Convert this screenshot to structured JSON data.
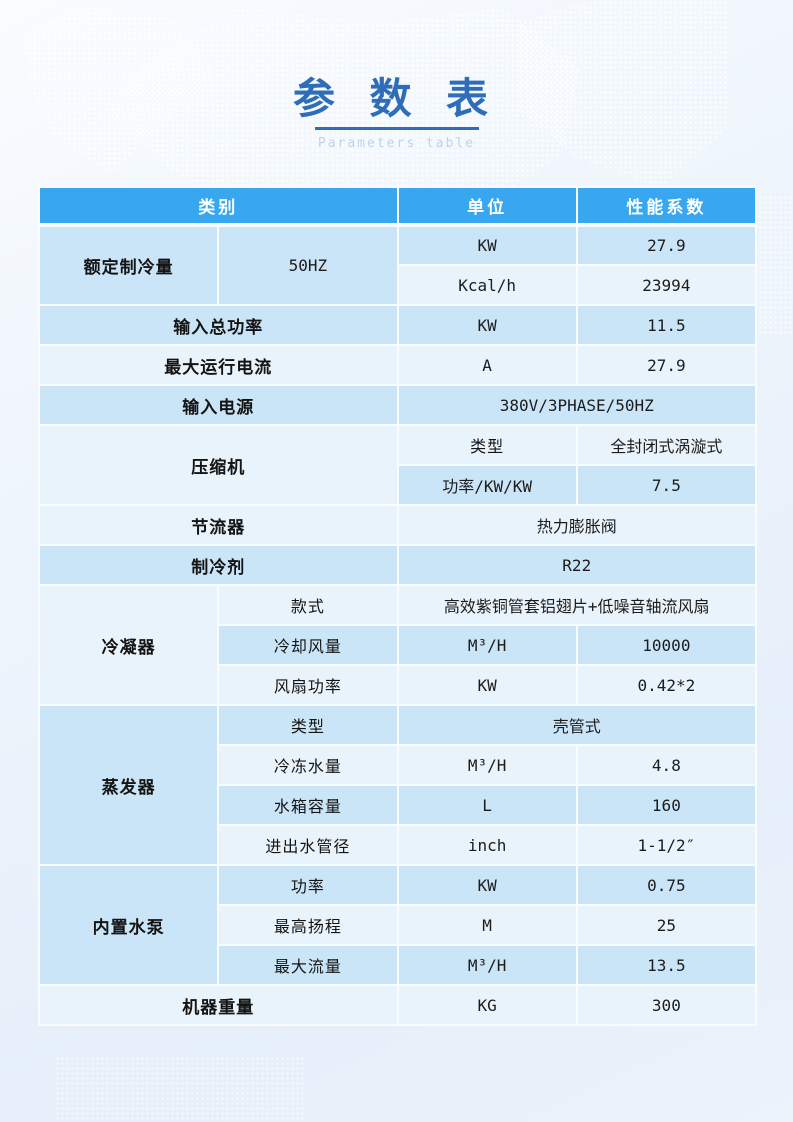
{
  "page": {
    "title": "参 数 表",
    "subtitle": "Parameters table"
  },
  "colors": {
    "header_bg": "#38a7f0",
    "row_dark": "#cbe5f8",
    "row_light": "#e9f3fb",
    "title_blue": "#2f6db8",
    "subtitle_blue": "#bed3e9"
  },
  "table": {
    "header": {
      "category": "类别",
      "unit": "单位",
      "value": "性能系数"
    },
    "rows": [
      {
        "shade": "dark",
        "cells": [
          {
            "kind": "category",
            "text": "额定制冷量",
            "rowspan": 2
          },
          {
            "kind": "unit",
            "text": "50HZ",
            "rowspan": 2
          },
          {
            "kind": "unit",
            "text": "KW"
          },
          {
            "kind": "value",
            "text": "27.9"
          }
        ]
      },
      {
        "shade": "light",
        "cells": [
          {
            "kind": "unit",
            "text": "Kcal/h"
          },
          {
            "kind": "value",
            "text": "23994"
          }
        ]
      },
      {
        "shade": "dark",
        "cells": [
          {
            "kind": "category",
            "text": "输入总功率",
            "colspan": 2
          },
          {
            "kind": "unit",
            "text": "KW"
          },
          {
            "kind": "value",
            "text": "11.5"
          }
        ]
      },
      {
        "shade": "light",
        "cells": [
          {
            "kind": "category",
            "text": "最大运行电流",
            "colspan": 2
          },
          {
            "kind": "unit",
            "text": "A"
          },
          {
            "kind": "value",
            "text": "27.9"
          }
        ]
      },
      {
        "shade": "dark",
        "cells": [
          {
            "kind": "category",
            "text": "输入电源",
            "colspan": 2
          },
          {
            "kind": "value",
            "text": "380V/3PHASE/50HZ",
            "colspan": 2
          }
        ]
      },
      {
        "shade": "light",
        "cells": [
          {
            "kind": "category",
            "text": "压缩机",
            "colspan": 2,
            "rowspan": 2
          },
          {
            "kind": "sublabel",
            "text": "类型"
          },
          {
            "kind": "value",
            "text": "全封闭式涡漩式"
          }
        ]
      },
      {
        "shade": "dark",
        "cells": [
          {
            "kind": "unit",
            "text": "功率/KW/KW"
          },
          {
            "kind": "value",
            "text": "7.5"
          }
        ]
      },
      {
        "shade": "light",
        "cells": [
          {
            "kind": "category",
            "text": "节流器",
            "colspan": 2
          },
          {
            "kind": "value",
            "text": "热力膨胀阀",
            "colspan": 2
          }
        ]
      },
      {
        "shade": "dark",
        "cells": [
          {
            "kind": "category",
            "text": "制冷剂",
            "colspan": 2
          },
          {
            "kind": "value",
            "text": "R22",
            "colspan": 2
          }
        ]
      },
      {
        "shade": "light",
        "cells": [
          {
            "kind": "category",
            "text": "冷凝器",
            "rowspan": 3
          },
          {
            "kind": "sublabel",
            "text": "款式"
          },
          {
            "kind": "value",
            "text": "高效紫铜管套铝翅片+低噪音轴流风扇",
            "colspan": 2
          }
        ]
      },
      {
        "shade": "dark",
        "cells": [
          {
            "kind": "sublabel",
            "text": "冷却风量"
          },
          {
            "kind": "unit",
            "text": "M³/H"
          },
          {
            "kind": "value",
            "text": "10000"
          }
        ]
      },
      {
        "shade": "light",
        "cells": [
          {
            "kind": "sublabel",
            "text": "风扇功率"
          },
          {
            "kind": "unit",
            "text": "KW"
          },
          {
            "kind": "value",
            "text": "0.42*2"
          }
        ]
      },
      {
        "shade": "dark",
        "cells": [
          {
            "kind": "category",
            "text": "蒸发器",
            "rowspan": 4
          },
          {
            "kind": "sublabel",
            "text": "类型"
          },
          {
            "kind": "value",
            "text": "壳管式",
            "colspan": 2
          }
        ]
      },
      {
        "shade": "light",
        "cells": [
          {
            "kind": "sublabel",
            "text": "冷冻水量"
          },
          {
            "kind": "unit",
            "text": "M³/H"
          },
          {
            "kind": "value",
            "text": "4.8"
          }
        ]
      },
      {
        "shade": "dark",
        "cells": [
          {
            "kind": "sublabel",
            "text": "水箱容量"
          },
          {
            "kind": "unit",
            "text": "L"
          },
          {
            "kind": "value",
            "text": "160"
          }
        ]
      },
      {
        "shade": "light",
        "cells": [
          {
            "kind": "sublabel",
            "text": "进出水管径"
          },
          {
            "kind": "unit",
            "text": "inch"
          },
          {
            "kind": "value",
            "text": "1-1/2″"
          }
        ]
      },
      {
        "shade": "dark",
        "cells": [
          {
            "kind": "category",
            "text": "内置水泵",
            "rowspan": 3
          },
          {
            "kind": "sublabel",
            "text": "功率"
          },
          {
            "kind": "unit",
            "text": "KW"
          },
          {
            "kind": "value",
            "text": "0.75"
          }
        ]
      },
      {
        "shade": "light",
        "cells": [
          {
            "kind": "sublabel",
            "text": "最高扬程"
          },
          {
            "kind": "unit",
            "text": "M"
          },
          {
            "kind": "value",
            "text": "25"
          }
        ]
      },
      {
        "shade": "dark",
        "cells": [
          {
            "kind": "sublabel",
            "text": "最大流量"
          },
          {
            "kind": "unit",
            "text": "M³/H"
          },
          {
            "kind": "value",
            "text": "13.5"
          }
        ]
      },
      {
        "shade": "light",
        "cells": [
          {
            "kind": "category",
            "text": "机器重量",
            "colspan": 2
          },
          {
            "kind": "unit",
            "text": "KG"
          },
          {
            "kind": "value",
            "text": "300"
          }
        ]
      }
    ]
  }
}
